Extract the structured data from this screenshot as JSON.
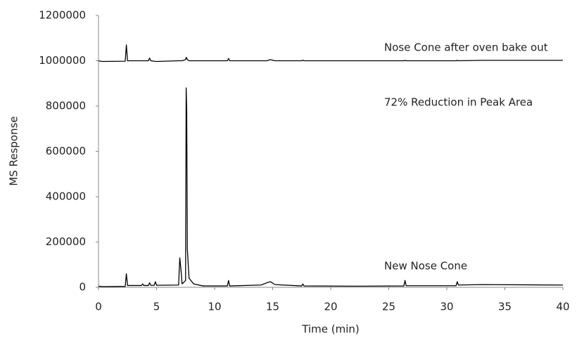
{
  "chart_data": {
    "type": "line",
    "xlabel": "Time (min)",
    "ylabel": "MS Response",
    "annotations": [
      "Nose Cone after oven bake out",
      "72% Reduction in Peak Area",
      "New Nose Cone"
    ],
    "x": [
      0,
      0.3,
      2.3,
      2.4,
      2.5,
      3.7,
      3.8,
      3.9,
      4.3,
      4.4,
      4.5,
      4.8,
      4.9,
      5.0,
      6.9,
      7.0,
      7.1,
      7.2,
      7.5,
      7.55,
      7.6,
      7.65,
      7.8,
      8.2,
      9,
      11.1,
      11.2,
      11.3,
      14,
      14.5,
      14.8,
      15.2,
      17.5,
      17.6,
      17.7,
      22,
      26.3,
      26.4,
      26.5,
      30.8,
      30.9,
      31.0,
      33,
      40
    ],
    "series": [
      {
        "name": "Nose Cone after oven bake out",
        "color": "#000000",
        "values": [
          1000000,
          997000,
          998000,
          1070000,
          1000000,
          1000000,
          1000000,
          1000000,
          1000000,
          1012000,
          1000000,
          998000,
          997000,
          997000,
          1000000,
          1000000,
          1000000,
          1000000,
          1005000,
          1015000,
          1012000,
          1005000,
          1000000,
          1000000,
          1000000,
          1000000,
          1010000,
          1000000,
          1000000,
          1000000,
          1005000,
          1000000,
          1000000,
          1003000,
          1000000,
          1000000,
          1000000,
          1002000,
          1000000,
          1000000,
          1002000,
          1000000,
          1002000,
          1002000
        ]
      },
      {
        "name": "New Nose Cone",
        "color": "#000000",
        "values": [
          5000,
          3000,
          4000,
          60000,
          8000,
          8000,
          15000,
          8000,
          8000,
          20000,
          9000,
          9000,
          25000,
          9000,
          10000,
          130000,
          80000,
          15000,
          30000,
          880000,
          780000,
          170000,
          40000,
          15000,
          6000,
          6000,
          30000,
          6000,
          10000,
          20000,
          25000,
          12000,
          6000,
          15000,
          6000,
          5000,
          6000,
          30000,
          7000,
          7000,
          25000,
          10000,
          12000,
          10000
        ]
      }
    ],
    "xlim": [
      0,
      40
    ],
    "xticks": [
      0,
      5,
      10,
      15,
      20,
      25,
      30,
      35,
      40
    ],
    "ylim": [
      0,
      1200000
    ],
    "yticks": [
      0,
      200000,
      400000,
      600000,
      800000,
      1000000,
      1200000
    ],
    "grid": false
  }
}
